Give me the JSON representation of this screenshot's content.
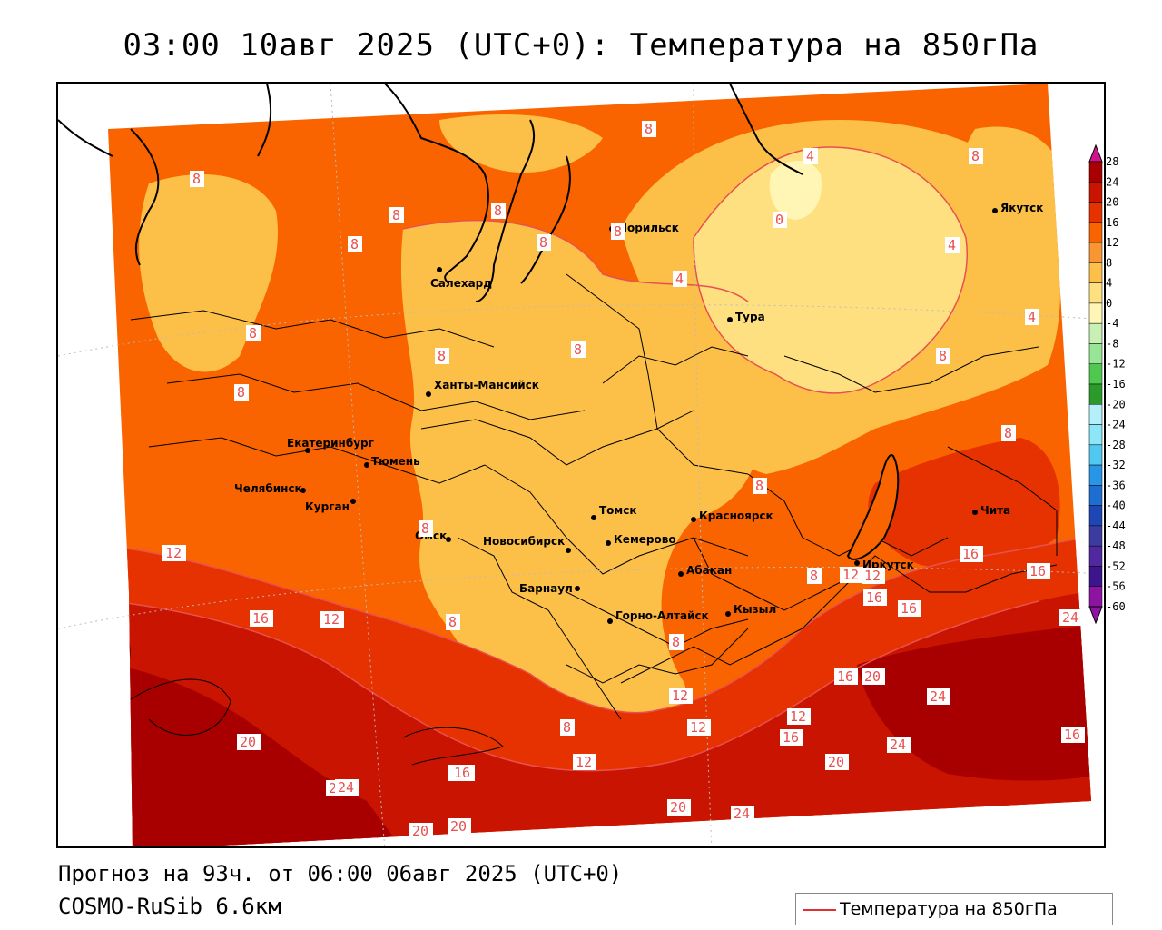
{
  "title": "03:00 10авг 2025 (UTC+0): Температура на 850гПа",
  "forecast_text": "Прогноз на 93ч. от 06:00 06авг 2025 (UTC+0)",
  "model_text": "COSMO-RuSib 6.6км",
  "legend_label": "Температура на 850гПа",
  "colors": {
    "legend_line": "#e03030",
    "contour": "#e85050",
    "border": "#000000"
  },
  "colorbar": [
    {
      "label": "28",
      "color": "#d0138c"
    },
    {
      "label": "24",
      "color": "#a80000"
    },
    {
      "label": "20",
      "color": "#c81400"
    },
    {
      "label": "16",
      "color": "#e63200"
    },
    {
      "label": "12",
      "color": "#fa6400"
    },
    {
      "label": "8",
      "color": "#fa9632"
    },
    {
      "label": "4",
      "color": "#fcc048"
    },
    {
      "label": "0",
      "color": "#ffe080"
    },
    {
      "label": "-4",
      "color": "#fff5b4"
    },
    {
      "label": "-8",
      "color": "#c8f0b4"
    },
    {
      "label": "-12",
      "color": "#96e696"
    },
    {
      "label": "-16",
      "color": "#50c850"
    },
    {
      "label": "-20",
      "color": "#2a9a2a"
    },
    {
      "label": "-24",
      "color": "#b4f0fa"
    },
    {
      "label": "-28",
      "color": "#8ce6f8"
    },
    {
      "label": "-32",
      "color": "#50c8f0"
    },
    {
      "label": "-36",
      "color": "#2896e6"
    },
    {
      "label": "-40",
      "color": "#1e6ed2"
    },
    {
      "label": "-44",
      "color": "#1e46b4"
    },
    {
      "label": "-48",
      "color": "#3c3ca0"
    },
    {
      "label": "-52",
      "color": "#5028a0"
    },
    {
      "label": "-56",
      "color": "#3c148c"
    },
    {
      "label": "-60",
      "color": "#8c14a0"
    }
  ],
  "cities": [
    {
      "name": "Салехард"
    },
    {
      "name": "Норильск"
    },
    {
      "name": "Якутск"
    },
    {
      "name": "Тура"
    },
    {
      "name": "Ханты-Мансийск"
    },
    {
      "name": "Екатеринбург"
    },
    {
      "name": "Тюмень"
    },
    {
      "name": "Челябинск"
    },
    {
      "name": "Курган"
    },
    {
      "name": "Омск"
    },
    {
      "name": "Новосибирск"
    },
    {
      "name": "Томск"
    },
    {
      "name": "Кемерово"
    },
    {
      "name": "Барнаул"
    },
    {
      "name": "Красноярск"
    },
    {
      "name": "Абакан"
    },
    {
      "name": "Горно-Алтайск"
    },
    {
      "name": "Кызыл"
    },
    {
      "name": "Иркутск"
    },
    {
      "name": "Чита"
    }
  ],
  "contour_labels": [
    "8",
    "8",
    "8",
    "8",
    "8",
    "8",
    "8",
    "8",
    "8",
    "8",
    "8",
    "8",
    "4",
    "0",
    "8",
    "4",
    "4",
    "4",
    "8",
    "8",
    "8",
    "8",
    "12",
    "12",
    "16",
    "16",
    "16",
    "16",
    "12",
    "16",
    "12",
    "8",
    "8",
    "8",
    "12",
    "16",
    "20",
    "24",
    "12",
    "16",
    "20",
    "24",
    "12",
    "16",
    "20",
    "20",
    "16",
    "20",
    "24",
    "20",
    "20",
    "24",
    "24",
    "16",
    "12",
    "8"
  ]
}
